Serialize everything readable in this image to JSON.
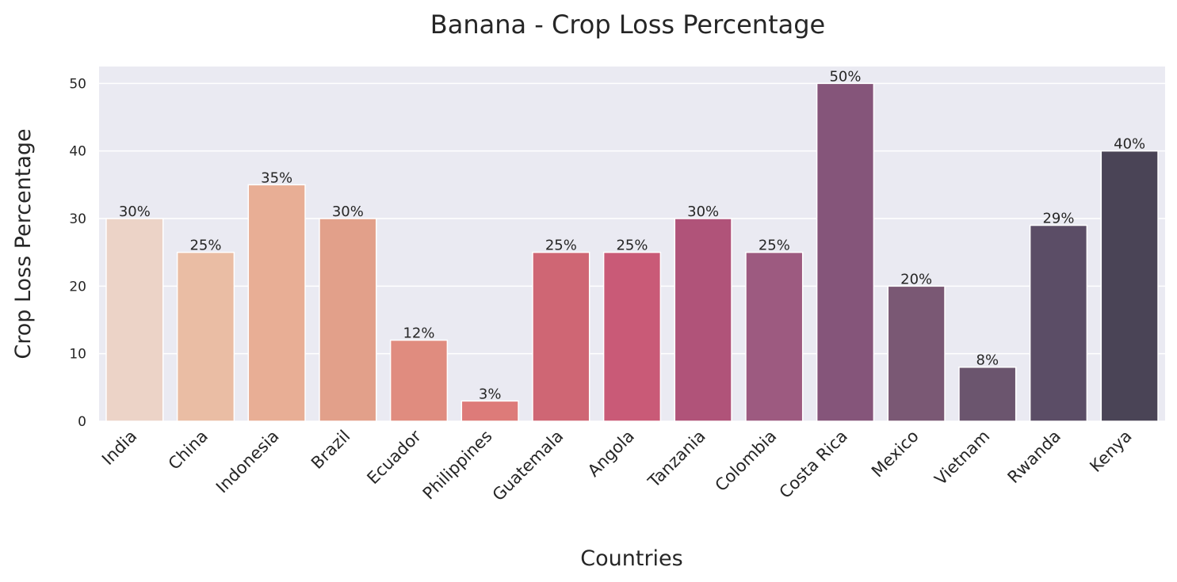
{
  "chart_data": {
    "type": "bar",
    "title": "Banana - Crop Loss Percentage",
    "xlabel": "Countries",
    "ylabel": "Crop Loss Percentage",
    "categories": [
      "India",
      "China",
      "Indonesia",
      "Brazil",
      "Ecuador",
      "Philippines",
      "Guatemala",
      "Angola",
      "Tanzania",
      "Colombia",
      "Costa Rica",
      "Mexico",
      "Vietnam",
      "Rwanda",
      "Kenya"
    ],
    "values": [
      30,
      25,
      35,
      30,
      12,
      3,
      25,
      25,
      30,
      25,
      50,
      20,
      8,
      29,
      40
    ],
    "data_labels": [
      "30%",
      "25%",
      "35%",
      "30%",
      "12%",
      "3%",
      "25%",
      "25%",
      "30%",
      "25%",
      "50%",
      "20%",
      "8%",
      "29%",
      "40%"
    ],
    "ylim": [
      0,
      52.5
    ],
    "yticks": [
      0,
      10,
      20,
      30,
      40,
      50
    ],
    "grid": true,
    "colors": [
      "#ecd3c7",
      "#eabda4",
      "#e8ae95",
      "#e2a08a",
      "#e08c7f",
      "#dd7b79",
      "#cf6674",
      "#c95a77",
      "#b05379",
      "#9d5a80",
      "#85557a",
      "#7a5874",
      "#6b556e",
      "#5b4d66",
      "#4a4456"
    ]
  }
}
